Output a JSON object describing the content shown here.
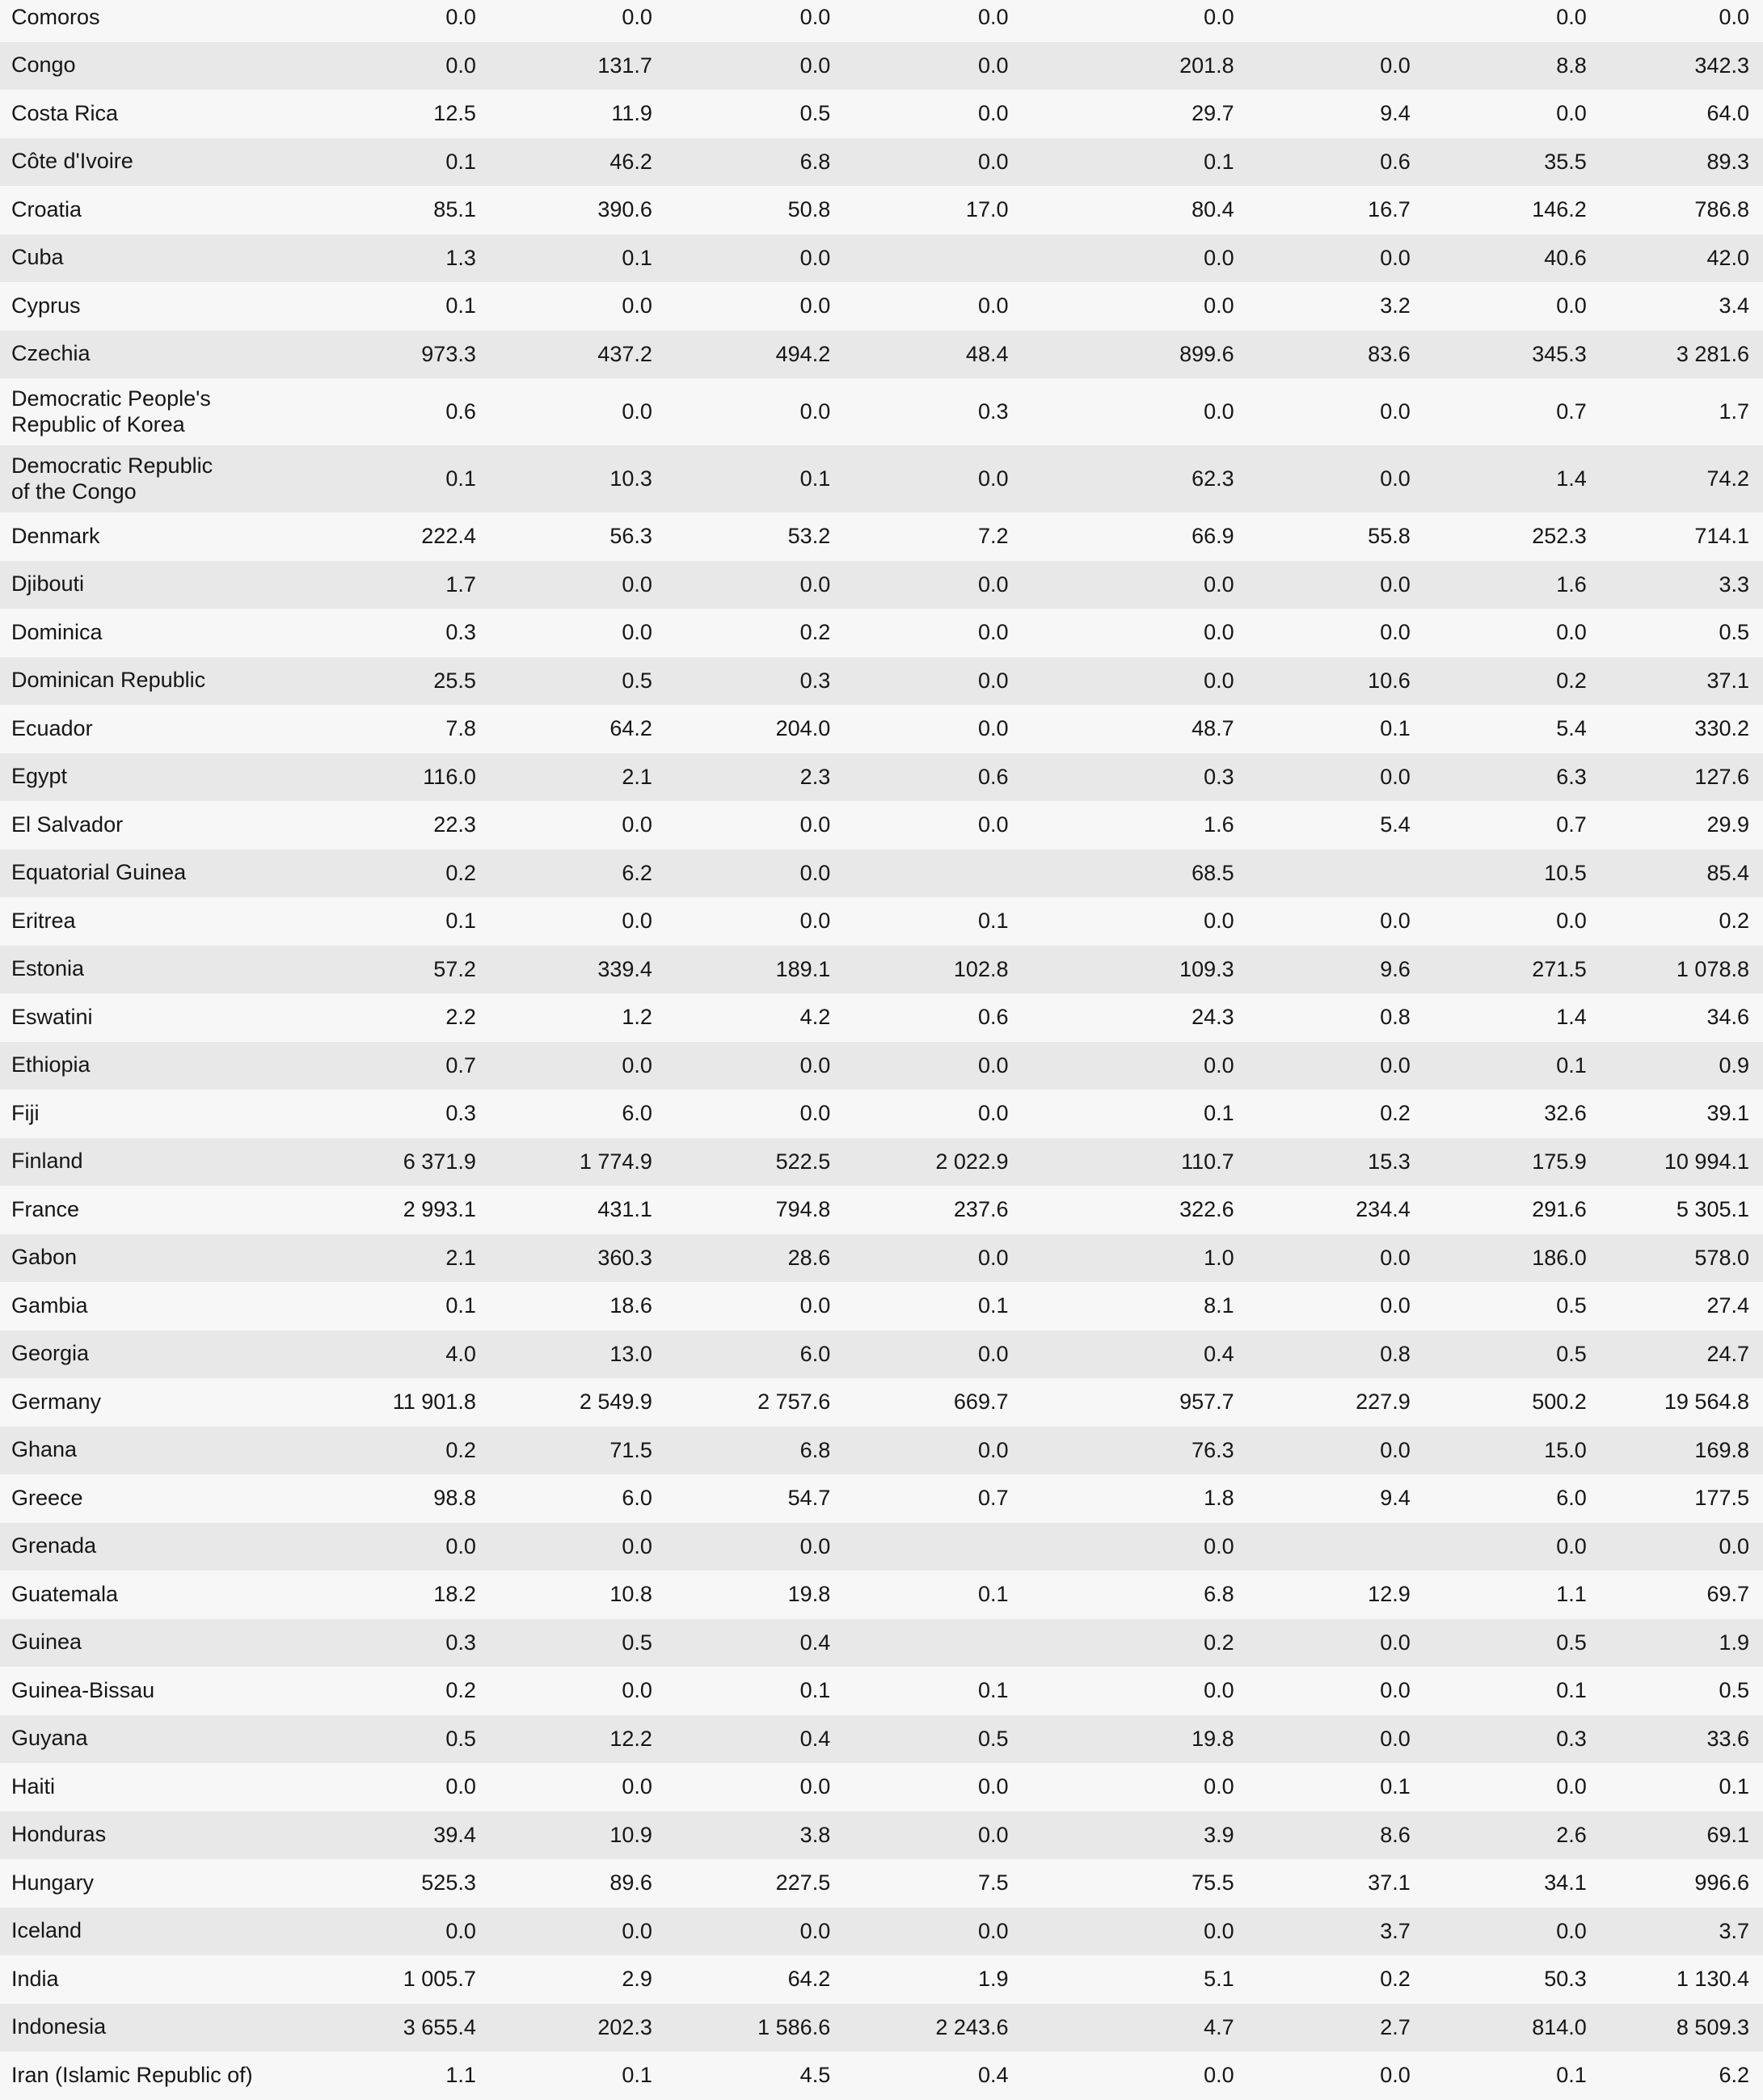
{
  "style": {
    "row_light": "#f7f7f7",
    "row_dark": "#e8e8e8",
    "text_color": "#161616"
  },
  "chart_data": {
    "type": "table",
    "first_column": "country",
    "num_value_columns": 8,
    "rows": [
      {
        "country": "Comoros",
        "values": [
          "0.0",
          "0.0",
          "0.0",
          "0.0",
          "0.0",
          "",
          "0.0",
          "0.0"
        ]
      },
      {
        "country": "Congo",
        "values": [
          "0.0",
          "131.7",
          "0.0",
          "0.0",
          "201.8",
          "0.0",
          "8.8",
          "342.3"
        ]
      },
      {
        "country": "Costa Rica",
        "values": [
          "12.5",
          "11.9",
          "0.5",
          "0.0",
          "29.7",
          "9.4",
          "0.0",
          "64.0"
        ]
      },
      {
        "country": "Côte d'Ivoire",
        "values": [
          "0.1",
          "46.2",
          "6.8",
          "0.0",
          "0.1",
          "0.6",
          "35.5",
          "89.3"
        ]
      },
      {
        "country": "Croatia",
        "values": [
          "85.1",
          "390.6",
          "50.8",
          "17.0",
          "80.4",
          "16.7",
          "146.2",
          "786.8"
        ]
      },
      {
        "country": "Cuba",
        "values": [
          "1.3",
          "0.1",
          "0.0",
          "",
          "0.0",
          "0.0",
          "40.6",
          "42.0"
        ]
      },
      {
        "country": "Cyprus",
        "values": [
          "0.1",
          "0.0",
          "0.0",
          "0.0",
          "0.0",
          "3.2",
          "0.0",
          "3.4"
        ]
      },
      {
        "country": "Czechia",
        "values": [
          "973.3",
          "437.2",
          "494.2",
          "48.4",
          "899.6",
          "83.6",
          "345.3",
          "3 281.6"
        ]
      },
      {
        "country": "Democratic People's\nRepublic of Korea",
        "values": [
          "0.6",
          "0.0",
          "0.0",
          "0.3",
          "0.0",
          "0.0",
          "0.7",
          "1.7"
        ]
      },
      {
        "country": "Democratic Republic\nof the Congo",
        "values": [
          "0.1",
          "10.3",
          "0.1",
          "0.0",
          "62.3",
          "0.0",
          "1.4",
          "74.2"
        ]
      },
      {
        "country": "Denmark",
        "values": [
          "222.4",
          "56.3",
          "53.2",
          "7.2",
          "66.9",
          "55.8",
          "252.3",
          "714.1"
        ]
      },
      {
        "country": "Djibouti",
        "values": [
          "1.7",
          "0.0",
          "0.0",
          "0.0",
          "0.0",
          "0.0",
          "1.6",
          "3.3"
        ]
      },
      {
        "country": "Dominica",
        "values": [
          "0.3",
          "0.0",
          "0.2",
          "0.0",
          "0.0",
          "0.0",
          "0.0",
          "0.5"
        ]
      },
      {
        "country": "Dominican Republic",
        "values": [
          "25.5",
          "0.5",
          "0.3",
          "0.0",
          "0.0",
          "10.6",
          "0.2",
          "37.1"
        ]
      },
      {
        "country": "Ecuador",
        "values": [
          "7.8",
          "64.2",
          "204.0",
          "0.0",
          "48.7",
          "0.1",
          "5.4",
          "330.2"
        ]
      },
      {
        "country": "Egypt",
        "values": [
          "116.0",
          "2.1",
          "2.3",
          "0.6",
          "0.3",
          "0.0",
          "6.3",
          "127.6"
        ]
      },
      {
        "country": "El Salvador",
        "values": [
          "22.3",
          "0.0",
          "0.0",
          "0.0",
          "1.6",
          "5.4",
          "0.7",
          "29.9"
        ]
      },
      {
        "country": "Equatorial Guinea",
        "values": [
          "0.2",
          "6.2",
          "0.0",
          "",
          "68.5",
          "",
          "10.5",
          "85.4"
        ]
      },
      {
        "country": "Eritrea",
        "values": [
          "0.1",
          "0.0",
          "0.0",
          "0.1",
          "0.0",
          "0.0",
          "0.0",
          "0.2"
        ]
      },
      {
        "country": "Estonia",
        "values": [
          "57.2",
          "339.4",
          "189.1",
          "102.8",
          "109.3",
          "9.6",
          "271.5",
          "1 078.8"
        ]
      },
      {
        "country": "Eswatini",
        "values": [
          "2.2",
          "1.2",
          "4.2",
          "0.6",
          "24.3",
          "0.8",
          "1.4",
          "34.6"
        ]
      },
      {
        "country": "Ethiopia",
        "values": [
          "0.7",
          "0.0",
          "0.0",
          "0.0",
          "0.0",
          "0.0",
          "0.1",
          "0.9"
        ]
      },
      {
        "country": "Fiji",
        "values": [
          "0.3",
          "6.0",
          "0.0",
          "0.0",
          "0.1",
          "0.2",
          "32.6",
          "39.1"
        ]
      },
      {
        "country": "Finland",
        "values": [
          "6 371.9",
          "1 774.9",
          "522.5",
          "2 022.9",
          "110.7",
          "15.3",
          "175.9",
          "10 994.1"
        ]
      },
      {
        "country": "France",
        "values": [
          "2 993.1",
          "431.1",
          "794.8",
          "237.6",
          "322.6",
          "234.4",
          "291.6",
          "5 305.1"
        ]
      },
      {
        "country": "Gabon",
        "values": [
          "2.1",
          "360.3",
          "28.6",
          "0.0",
          "1.0",
          "0.0",
          "186.0",
          "578.0"
        ]
      },
      {
        "country": "Gambia",
        "values": [
          "0.1",
          "18.6",
          "0.0",
          "0.1",
          "8.1",
          "0.0",
          "0.5",
          "27.4"
        ]
      },
      {
        "country": "Georgia",
        "values": [
          "4.0",
          "13.0",
          "6.0",
          "0.0",
          "0.4",
          "0.8",
          "0.5",
          "24.7"
        ]
      },
      {
        "country": "Germany",
        "values": [
          "11 901.8",
          "2 549.9",
          "2 757.6",
          "669.7",
          "957.7",
          "227.9",
          "500.2",
          "19 564.8"
        ]
      },
      {
        "country": "Ghana",
        "values": [
          "0.2",
          "71.5",
          "6.8",
          "0.0",
          "76.3",
          "0.0",
          "15.0",
          "169.8"
        ]
      },
      {
        "country": "Greece",
        "values": [
          "98.8",
          "6.0",
          "54.7",
          "0.7",
          "1.8",
          "9.4",
          "6.0",
          "177.5"
        ]
      },
      {
        "country": "Grenada",
        "values": [
          "0.0",
          "0.0",
          "0.0",
          "",
          "0.0",
          "",
          "0.0",
          "0.0"
        ]
      },
      {
        "country": "Guatemala",
        "values": [
          "18.2",
          "10.8",
          "19.8",
          "0.1",
          "6.8",
          "12.9",
          "1.1",
          "69.7"
        ]
      },
      {
        "country": "Guinea",
        "values": [
          "0.3",
          "0.5",
          "0.4",
          "",
          "0.2",
          "0.0",
          "0.5",
          "1.9"
        ]
      },
      {
        "country": "Guinea-Bissau",
        "values": [
          "0.2",
          "0.0",
          "0.1",
          "0.1",
          "0.0",
          "0.0",
          "0.1",
          "0.5"
        ]
      },
      {
        "country": "Guyana",
        "values": [
          "0.5",
          "12.2",
          "0.4",
          "0.5",
          "19.8",
          "0.0",
          "0.3",
          "33.6"
        ]
      },
      {
        "country": "Haiti",
        "values": [
          "0.0",
          "0.0",
          "0.0",
          "0.0",
          "0.0",
          "0.1",
          "0.0",
          "0.1"
        ]
      },
      {
        "country": "Honduras",
        "values": [
          "39.4",
          "10.9",
          "3.8",
          "0.0",
          "3.9",
          "8.6",
          "2.6",
          "69.1"
        ]
      },
      {
        "country": "Hungary",
        "values": [
          "525.3",
          "89.6",
          "227.5",
          "7.5",
          "75.5",
          "37.1",
          "34.1",
          "996.6"
        ]
      },
      {
        "country": "Iceland",
        "values": [
          "0.0",
          "0.0",
          "0.0",
          "0.0",
          "0.0",
          "3.7",
          "0.0",
          "3.7"
        ]
      },
      {
        "country": "India",
        "values": [
          "1 005.7",
          "2.9",
          "64.2",
          "1.9",
          "5.1",
          "0.2",
          "50.3",
          "1 130.4"
        ]
      },
      {
        "country": "Indonesia",
        "values": [
          "3 655.4",
          "202.3",
          "1 586.6",
          "2 243.6",
          "4.7",
          "2.7",
          "814.0",
          "8 509.3"
        ]
      },
      {
        "country": "Iran (Islamic Republic of)",
        "values": [
          "1.1",
          "0.1",
          "4.5",
          "0.4",
          "0.0",
          "0.0",
          "0.1",
          "6.2"
        ]
      }
    ]
  }
}
